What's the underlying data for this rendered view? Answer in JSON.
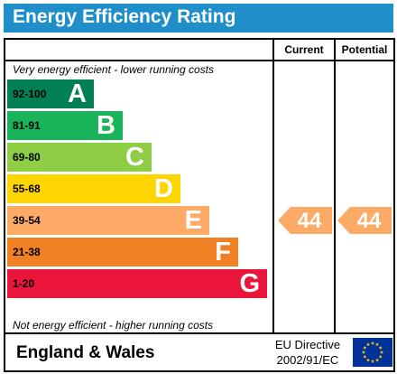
{
  "title": "Energy Efficiency Rating",
  "columns": {
    "current": "Current",
    "potential": "Potential"
  },
  "notes": {
    "top": "Very energy efficient - lower running costs",
    "bottom": "Not energy efficient - higher running costs"
  },
  "bands": [
    {
      "range": "92-100",
      "letter": "A",
      "color": "#008054"
    },
    {
      "range": "81-91",
      "letter": "B",
      "color": "#19b459"
    },
    {
      "range": "69-80",
      "letter": "C",
      "color": "#8dce46"
    },
    {
      "range": "55-68",
      "letter": "D",
      "color": "#ffd500"
    },
    {
      "range": "39-54",
      "letter": "E",
      "color": "#fcaa65"
    },
    {
      "range": "21-38",
      "letter": "F",
      "color": "#ef8023"
    },
    {
      "range": "1-20",
      "letter": "G",
      "color": "#e9153b"
    }
  ],
  "current": {
    "value": "44",
    "band": "E",
    "color": "#fcaa65"
  },
  "potential": {
    "value": "44",
    "band": "E",
    "color": "#fcaa65"
  },
  "footer": {
    "country": "England & Wales",
    "directive_line1": "EU Directive",
    "directive_line2": "2002/91/EC"
  },
  "eu_flag": {
    "icon": "eu-flag-icon",
    "background": "#003399",
    "stars": "#ffcc00"
  }
}
